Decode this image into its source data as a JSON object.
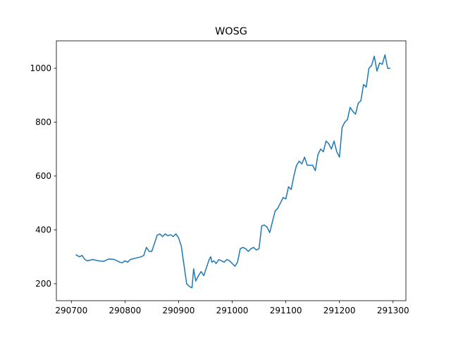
{
  "chart_data": {
    "type": "line",
    "title": "WOSG",
    "x": [
      290708,
      290715,
      290720,
      290725,
      290730,
      290740,
      290750,
      290760,
      290770,
      290780,
      290790,
      290795,
      290800,
      290805,
      290810,
      290820,
      290830,
      290835,
      290840,
      290845,
      290850,
      290855,
      290860,
      290865,
      290870,
      290875,
      290880,
      290885,
      290890,
      290895,
      290900,
      290905,
      290910,
      290915,
      290920,
      290925,
      290928,
      290932,
      290937,
      290942,
      290947,
      290952,
      290957,
      290960,
      290962,
      290966,
      290970,
      290975,
      290980,
      290985,
      290990,
      290995,
      291000,
      291005,
      291010,
      291015,
      291020,
      291025,
      291030,
      291035,
      291040,
      291045,
      291050,
      291055,
      291060,
      291065,
      291070,
      291075,
      291080,
      291085,
      291090,
      291095,
      291100,
      291105,
      291110,
      291115,
      291120,
      291125,
      291130,
      291135,
      291140,
      291145,
      291150,
      291155,
      291160,
      291165,
      291170,
      291175,
      291180,
      291185,
      291190,
      291195,
      291200,
      291205,
      291210,
      291215,
      291220,
      291225,
      291230,
      291235,
      291240,
      291245,
      291250,
      291255,
      291260,
      291265,
      291270,
      291275,
      291280,
      291285,
      291290,
      291295
    ],
    "series": [
      {
        "name": "WOSG",
        "color": "#1f77b4",
        "values": [
          308,
          300,
          305,
          290,
          285,
          290,
          285,
          283,
          292,
          290,
          280,
          278,
          285,
          280,
          290,
          295,
          300,
          305,
          335,
          320,
          320,
          350,
          380,
          385,
          375,
          385,
          378,
          382,
          375,
          385,
          370,
          340,
          270,
          200,
          190,
          185,
          255,
          210,
          230,
          245,
          230,
          260,
          290,
          300,
          280,
          285,
          275,
          290,
          285,
          280,
          290,
          285,
          275,
          265,
          280,
          330,
          335,
          330,
          320,
          330,
          335,
          325,
          330,
          415,
          418,
          410,
          390,
          430,
          470,
          480,
          500,
          520,
          515,
          560,
          550,
          600,
          640,
          655,
          645,
          670,
          640,
          640,
          640,
          620,
          680,
          700,
          690,
          730,
          720,
          700,
          730,
          690,
          670,
          780,
          800,
          810,
          855,
          840,
          830,
          870,
          880,
          940,
          930,
          1000,
          1010,
          1045,
          990,
          1020,
          1015,
          1050,
          1000,
          1000
        ]
      }
    ],
    "xlim": [
      290672,
      291324
    ],
    "xticks": [
      290700,
      290800,
      290900,
      291000,
      291100,
      291200,
      291300
    ],
    "ylim": [
      137,
      1102
    ],
    "yticks": [
      200,
      400,
      600,
      800,
      1000
    ]
  }
}
